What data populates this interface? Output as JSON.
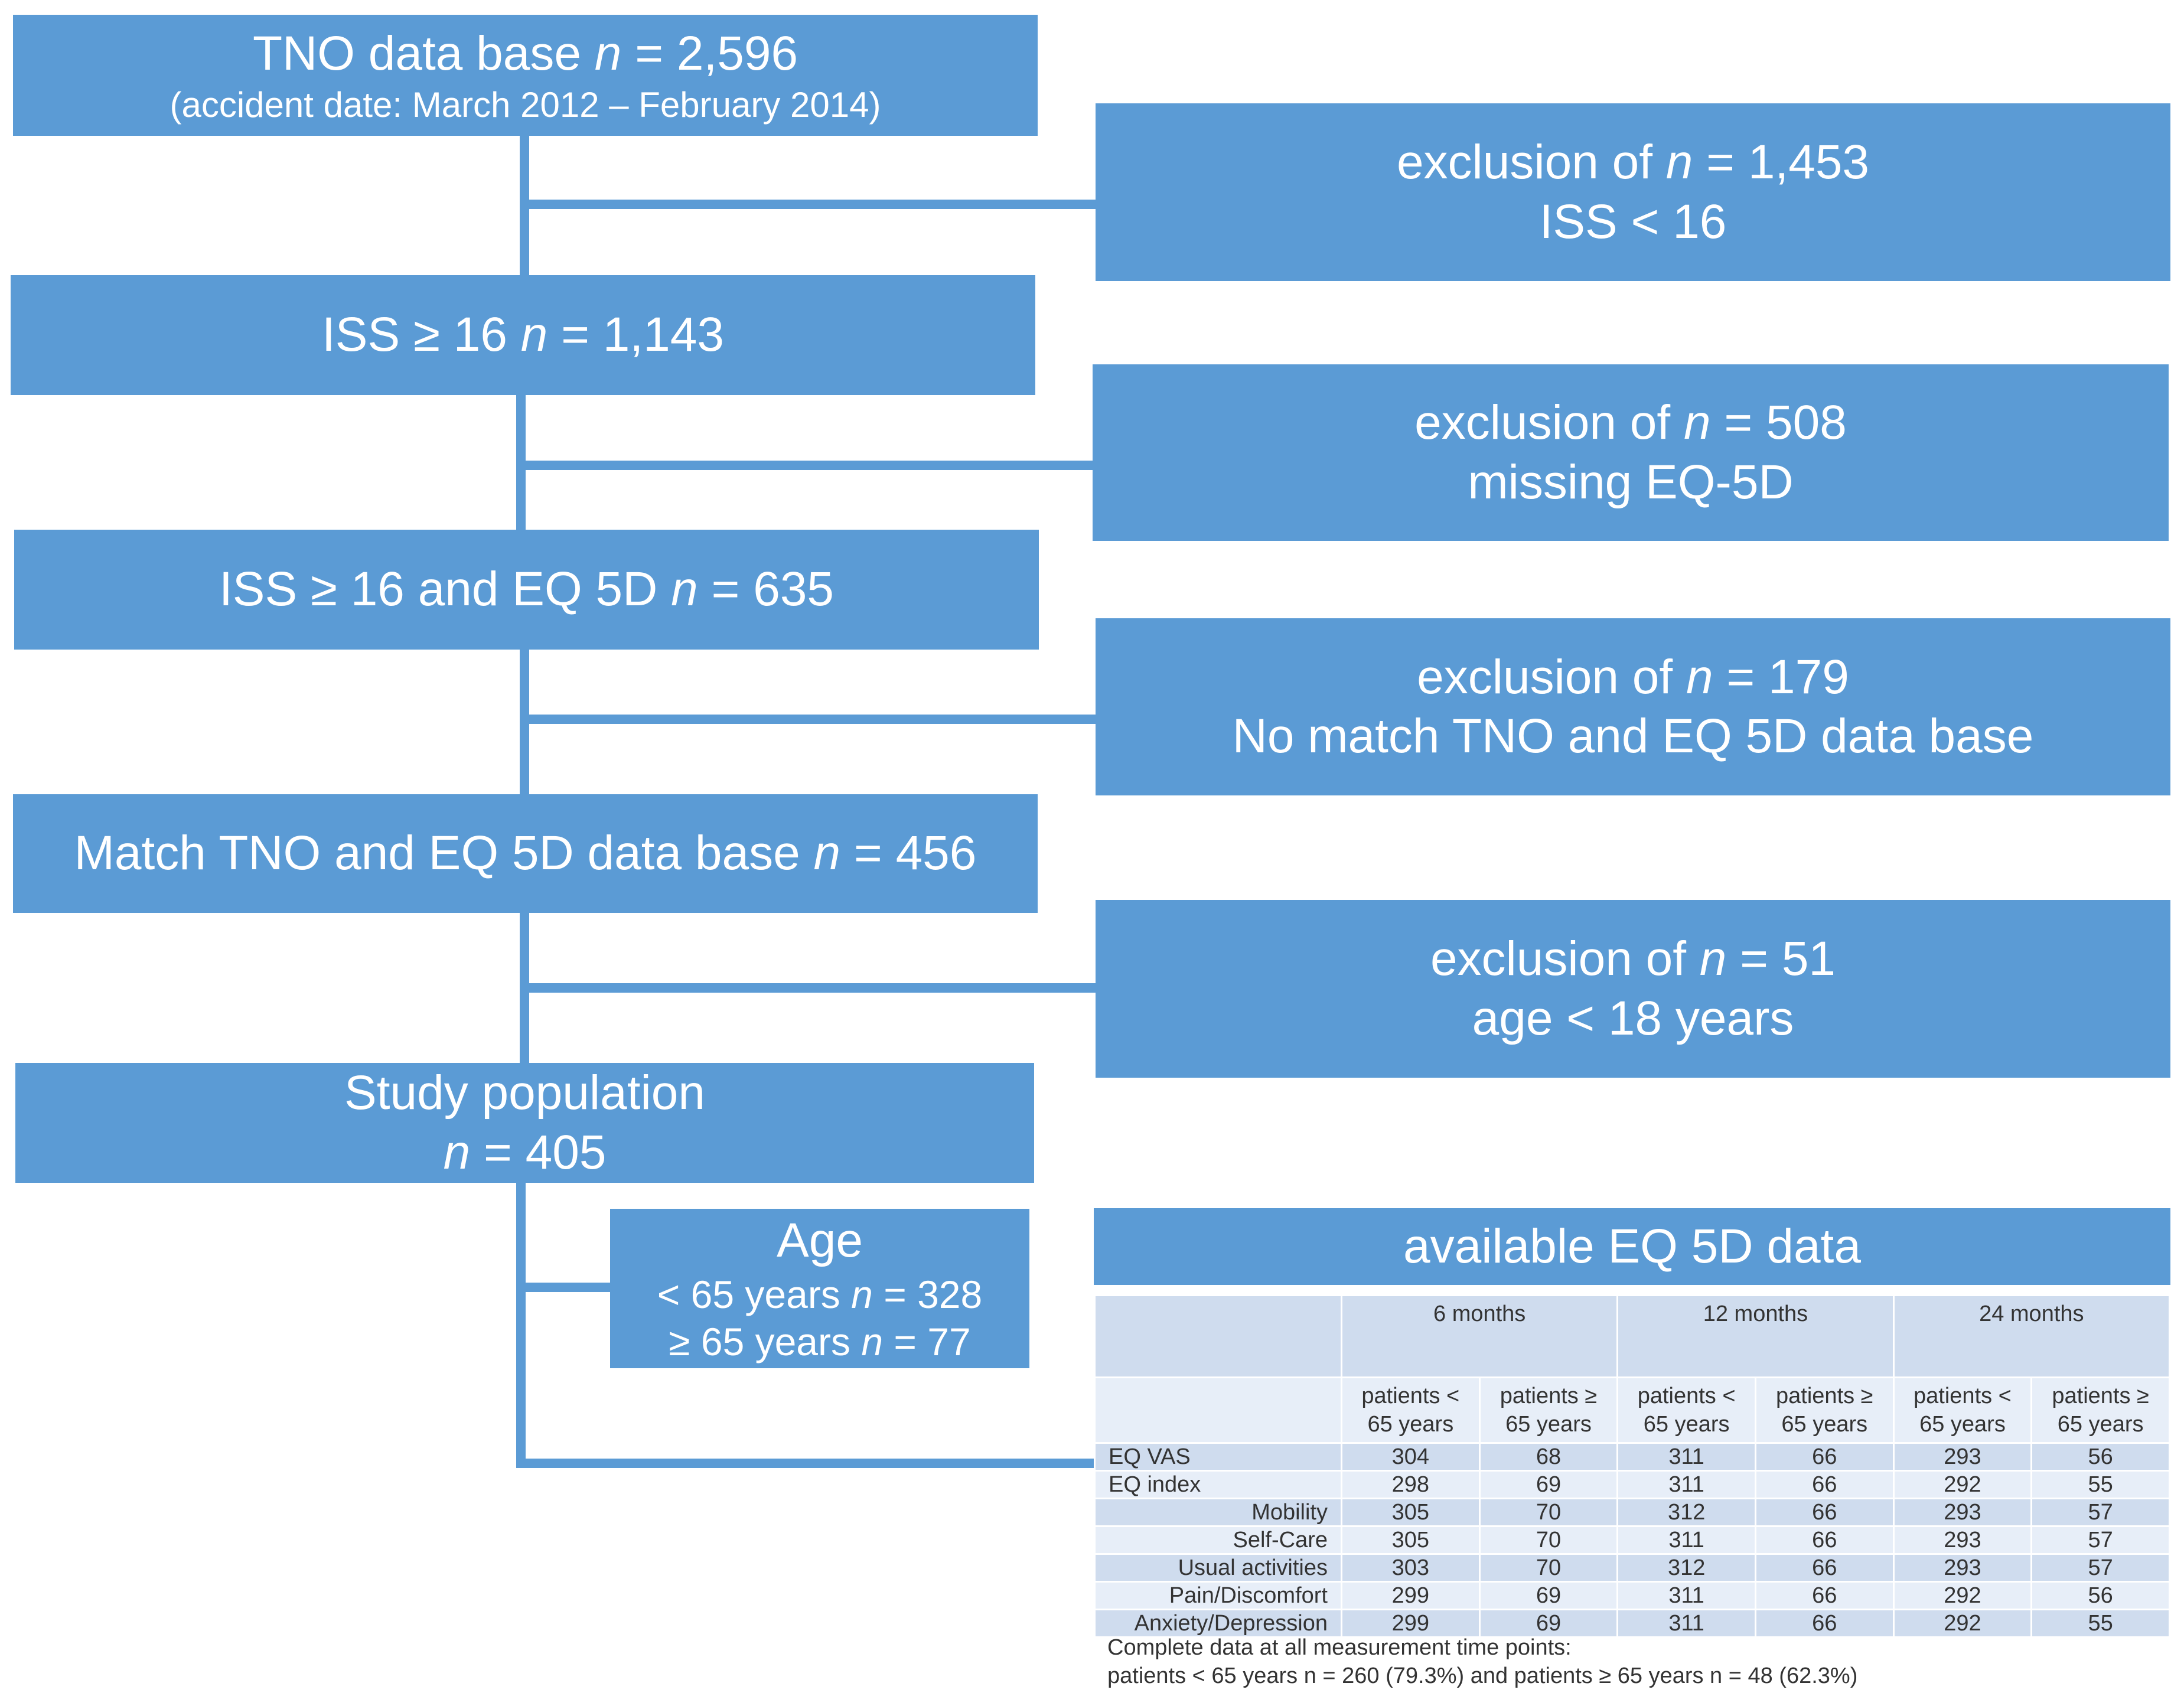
{
  "flow": {
    "tno": {
      "line1_a": "TNO data base ",
      "line1_n": "n",
      "line1_b": " = 2,596",
      "line2": "(accident date: March 2012 – February 2014)"
    },
    "iss": {
      "a": "ISS ≥ 16 ",
      "n": "n",
      "b": " = 1,143"
    },
    "iss_eq": {
      "a": "ISS ≥ 16 and EQ 5D ",
      "n": "n",
      "b": " = 635"
    },
    "match": {
      "a": "Match TNO and EQ 5D data base ",
      "n": "n",
      "b": " = 456"
    },
    "study": {
      "line1": "Study population",
      "n": "n",
      "b": " = 405"
    },
    "age": {
      "title": "Age",
      "row1_a": "< 65  years ",
      "row1_n": "n",
      "row1_b": " = 328",
      "row2_a": "≥ 65  years ",
      "row2_n": "n",
      "row2_b": " = 77"
    }
  },
  "exclusions": [
    {
      "a": "exclusion of ",
      "n": "n",
      "b": " = 1,453",
      "reason": "ISS < 16"
    },
    {
      "a": "exclusion of ",
      "n": "n",
      "b": " = 508",
      "reason": "missing EQ-5D"
    },
    {
      "a": "exclusion of ",
      "n": "n",
      "b": " = 179",
      "reason": "No match TNO and EQ 5D data base"
    },
    {
      "a": "exclusion of ",
      "n": "n",
      "b": " = 51",
      "reason": "age < 18 years"
    }
  ],
  "table": {
    "title": "available EQ 5D data",
    "periods": [
      "6 months",
      "12 months",
      "24 months"
    ],
    "sub_lt": [
      "patients <",
      "65 years"
    ],
    "sub_ge": [
      "patients ≥",
      "65 years"
    ],
    "rows": [
      {
        "label": "EQ VAS",
        "values": [
          "304",
          "68",
          "311",
          "66",
          "293",
          "56"
        ]
      },
      {
        "label": "EQ index",
        "values": [
          "298",
          "69",
          "311",
          "66",
          "292",
          "55"
        ]
      },
      {
        "label": "Mobility",
        "values": [
          "305",
          "70",
          "312",
          "66",
          "293",
          "57"
        ]
      },
      {
        "label": "Self-Care",
        "values": [
          "305",
          "70",
          "311",
          "66",
          "293",
          "57"
        ]
      },
      {
        "label": "Usual activities",
        "values": [
          "303",
          "70",
          "312",
          "66",
          "293",
          "57"
        ]
      },
      {
        "label": "Pain/Discomfort",
        "values": [
          "299",
          "69",
          "311",
          "66",
          "292",
          "56"
        ]
      },
      {
        "label": "Anxiety/Depression",
        "values": [
          "299",
          "69",
          "311",
          "66",
          "292",
          "55"
        ]
      }
    ],
    "note_line1": "Complete data at all measurement time points:",
    "note_line2": "patients < 65  years n = 260 (79.3%) and  patients ≥ 65  years n = 48  (62.3%)"
  }
}
